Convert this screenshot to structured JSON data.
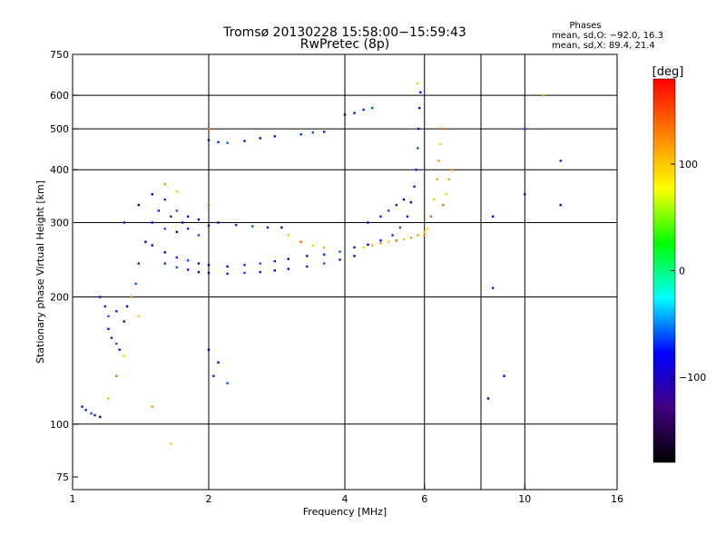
{
  "chart_data": {
    "type": "scatter",
    "title": "Tromsø 20130228 15:58:00−15:59:43",
    "subtitle": "RwPretec (8p)",
    "xlabel": "Frequency [MHz]",
    "ylabel": "Stationary phase Virtual Height [km]",
    "x_scale": "log",
    "y_scale": "log",
    "xlim": [
      1,
      16
    ],
    "ylim": [
      70,
      750
    ],
    "x_ticks": [
      1,
      2,
      4,
      6,
      10,
      16
    ],
    "x_tick_labels": [
      "1",
      "2",
      "4",
      "6",
      "10",
      "16"
    ],
    "x_grid": [
      2,
      4,
      6,
      8,
      10
    ],
    "y_ticks": [
      75,
      100,
      200,
      300,
      400,
      500,
      600,
      750
    ],
    "y_tick_labels": [
      "75",
      "100",
      "200",
      "300",
      "400",
      "500",
      "600",
      "750"
    ],
    "y_grid": [
      100,
      200,
      300,
      400,
      500,
      600
    ],
    "grid": true,
    "annotation": {
      "title": "Phases",
      "line1": "mean, sd,O: −92.0, 16.3",
      "line2": "mean, sd,X:  89.4, 21.4"
    },
    "colorbar": {
      "label": "[deg]",
      "range": [
        -180,
        180
      ],
      "ticks": [
        100,
        0,
        -100
      ],
      "tick_labels": [
        "100",
        "0",
        "−100"
      ],
      "colors": [
        "#ff0000",
        "#ff8000",
        "#ffff00",
        "#00ff00",
        "#00ffff",
        "#0000ff",
        "#400080",
        "#000000"
      ]
    },
    "series": [
      {
        "points": [
          [
            1.05,
            110
          ],
          [
            1.07,
            108
          ],
          [
            1.1,
            106
          ],
          [
            1.12,
            105
          ],
          [
            1.15,
            104
          ],
          [
            1.2,
            168
          ],
          [
            1.22,
            160
          ],
          [
            1.25,
            155
          ],
          [
            1.27,
            150
          ],
          [
            1.3,
            175
          ],
          [
            1.32,
            190
          ],
          [
            1.35,
            200
          ],
          [
            1.38,
            215
          ],
          [
            1.4,
            240
          ],
          [
            1.45,
            270
          ],
          [
            1.5,
            300
          ],
          [
            1.55,
            320
          ],
          [
            1.6,
            290
          ],
          [
            1.65,
            310
          ],
          [
            1.7,
            285
          ],
          [
            1.75,
            300
          ],
          [
            1.8,
            290
          ],
          [
            1.9,
            280
          ],
          [
            2.0,
            295
          ],
          [
            1.5,
            265
          ],
          [
            1.6,
            255
          ],
          [
            1.7,
            248
          ],
          [
            1.8,
            244
          ],
          [
            1.9,
            240
          ],
          [
            2.0,
            238
          ],
          [
            2.2,
            236
          ],
          [
            2.4,
            238
          ],
          [
            2.6,
            240
          ],
          [
            2.8,
            243
          ],
          [
            3.0,
            246
          ],
          [
            3.3,
            250
          ],
          [
            3.6,
            252
          ],
          [
            3.9,
            256
          ],
          [
            4.2,
            262
          ],
          [
            4.5,
            266
          ],
          [
            4.8,
            272
          ],
          [
            5.1,
            280
          ],
          [
            5.3,
            292
          ],
          [
            5.5,
            310
          ],
          [
            5.6,
            335
          ],
          [
            5.7,
            365
          ],
          [
            5.75,
            400
          ],
          [
            5.8,
            450
          ],
          [
            5.82,
            500
          ],
          [
            5.85,
            560
          ],
          [
            5.88,
            610
          ],
          [
            1.6,
            240
          ],
          [
            1.7,
            235
          ],
          [
            1.8,
            232
          ],
          [
            1.9,
            229
          ],
          [
            2.0,
            228
          ],
          [
            2.2,
            227
          ],
          [
            2.4,
            228
          ],
          [
            2.6,
            229
          ],
          [
            2.8,
            231
          ],
          [
            3.0,
            233
          ],
          [
            3.3,
            236
          ],
          [
            3.6,
            240
          ],
          [
            3.9,
            245
          ],
          [
            4.2,
            250
          ],
          [
            2.1,
            300
          ],
          [
            2.3,
            296
          ],
          [
            2.5,
            294
          ],
          [
            2.7,
            292
          ],
          [
            2.9,
            292
          ],
          [
            2.0,
            470
          ],
          [
            2.1,
            465
          ],
          [
            2.2,
            463
          ],
          [
            2.4,
            468
          ],
          [
            2.6,
            475
          ],
          [
            2.8,
            480
          ],
          [
            3.2,
            485
          ],
          [
            3.4,
            490
          ],
          [
            3.6,
            492
          ],
          [
            4.0,
            540
          ],
          [
            4.2,
            545
          ],
          [
            4.4,
            555
          ],
          [
            4.6,
            560
          ],
          [
            1.3,
            300
          ],
          [
            1.4,
            330
          ],
          [
            1.5,
            350
          ],
          [
            1.6,
            340
          ],
          [
            1.7,
            320
          ],
          [
            1.8,
            310
          ],
          [
            1.9,
            305
          ],
          [
            4.5,
            300
          ],
          [
            4.8,
            310
          ],
          [
            5.0,
            320
          ],
          [
            5.2,
            330
          ],
          [
            5.4,
            340
          ],
          [
            1.15,
            200
          ],
          [
            1.18,
            190
          ],
          [
            1.2,
            180
          ],
          [
            1.25,
            185
          ],
          [
            2.0,
            150
          ],
          [
            2.1,
            140
          ],
          [
            2.05,
            130
          ],
          [
            2.2,
            125
          ],
          [
            8.5,
            210
          ],
          [
            8.3,
            115
          ],
          [
            12,
            330
          ],
          [
            12,
            420
          ],
          [
            10,
            500
          ],
          [
            10,
            350
          ],
          [
            8.5,
            310
          ],
          [
            9,
            130
          ]
        ]
      },
      {
        "points": [
          [
            6.0,
            280
          ],
          [
            6.1,
            290
          ],
          [
            6.2,
            310
          ],
          [
            6.3,
            340
          ],
          [
            6.4,
            380
          ],
          [
            6.45,
            420
          ],
          [
            6.5,
            460
          ],
          [
            6.55,
            500
          ],
          [
            4.4,
            262
          ],
          [
            4.6,
            265
          ],
          [
            4.8,
            268
          ],
          [
            5.0,
            270
          ],
          [
            5.2,
            272
          ],
          [
            5.4,
            274
          ],
          [
            5.6,
            276
          ],
          [
            5.8,
            280
          ],
          [
            6.0,
            285
          ],
          [
            6.6,
            330
          ],
          [
            6.7,
            350
          ],
          [
            6.8,
            380
          ],
          [
            6.9,
            400
          ],
          [
            3.0,
            280
          ],
          [
            3.2,
            270
          ],
          [
            3.4,
            265
          ],
          [
            3.6,
            262
          ],
          [
            1.35,
            200
          ],
          [
            1.4,
            180
          ],
          [
            1.25,
            130
          ],
          [
            1.3,
            145
          ],
          [
            1.2,
            115
          ],
          [
            1.5,
            110
          ],
          [
            1.65,
            90
          ],
          [
            2.0,
            500
          ],
          [
            5.8,
            640
          ],
          [
            11,
            600
          ],
          [
            1.6,
            370
          ],
          [
            1.7,
            355
          ],
          [
            2.0,
            330
          ]
        ]
      }
    ]
  }
}
